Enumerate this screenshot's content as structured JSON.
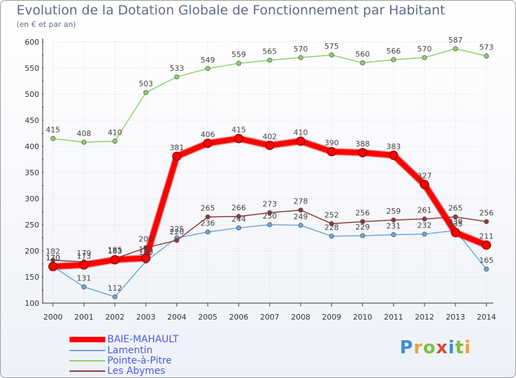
{
  "header": {
    "title": "Evolution de la Dotation Globale de Fonctionnement par Habitant",
    "subtitle": "(en € et par an)"
  },
  "brand": {
    "logo_text": "Proxiti",
    "letter_colors": [
      "#3a8fd6",
      "#e8a23a",
      "#7bbf3a",
      "#d84a3a",
      "#3a8fd6",
      "#7bbf3a",
      "#e8a23a"
    ]
  },
  "chart_data": {
    "type": "line",
    "title": "Evolution de la Dotation Globale de Fonctionnement par Habitant",
    "subtitle": "(en € et par an)",
    "xlabel": "",
    "ylabel": "",
    "x": [
      "2000",
      "2001",
      "2002",
      "2003",
      "2004",
      "2005",
      "2006",
      "2007",
      "2008",
      "2009",
      "2010",
      "2011",
      "2012",
      "2013",
      "2014"
    ],
    "ylim": [
      100,
      600
    ],
    "yticks": [
      100,
      150,
      200,
      250,
      300,
      350,
      400,
      450,
      500,
      550,
      600
    ],
    "grid": true,
    "legend_position": "bottom-left",
    "series": [
      {
        "name": "BAIE-MAHAULT",
        "color": "#ff0000",
        "emphasis": "bold",
        "values": [
          170,
          173,
          183,
          186,
          381,
          406,
          415,
          402,
          410,
          390,
          388,
          383,
          327,
          235,
          211
        ],
        "labels": [
          "170",
          "173",
          "183",
          "186",
          "381",
          "406",
          "415",
          "402",
          "410",
          "390",
          "388",
          "383",
          "327",
          "235",
          "211"
        ]
      },
      {
        "name": "Lamentin",
        "color": "#6fa7d8",
        "emphasis": "normal",
        "values": [
          170,
          131,
          112,
          180,
          225,
          236,
          244,
          250,
          249,
          228,
          229,
          231,
          232,
          239,
          165
        ],
        "labels": [
          "170",
          "131",
          "112",
          "180",
          "225",
          "236",
          "244",
          "250",
          "249",
          "228",
          "229",
          "231",
          "232",
          "239",
          "165"
        ]
      },
      {
        "name": "Pointe-à-Pitre",
        "color": "#8fd16a",
        "emphasis": "normal",
        "values": [
          415,
          408,
          410,
          503,
          533,
          549,
          559,
          565,
          570,
          575,
          560,
          566,
          570,
          587,
          573
        ],
        "labels": [
          "415",
          "408",
          "410",
          "503",
          "533",
          "549",
          "559",
          "565",
          "570",
          "575",
          "560",
          "566",
          "570",
          "587",
          "573"
        ]
      },
      {
        "name": "Les Abymes",
        "color": "#8b3a3a",
        "emphasis": "normal",
        "values": [
          182,
          179,
          185,
          206,
          220,
          265,
          266,
          273,
          278,
          252,
          256,
          259,
          261,
          265,
          256
        ],
        "labels": [
          "182",
          "179",
          "185",
          "206",
          "220",
          "265",
          "266",
          "273",
          "278",
          "252",
          "256",
          "259",
          "261",
          "265",
          "256"
        ]
      }
    ]
  }
}
